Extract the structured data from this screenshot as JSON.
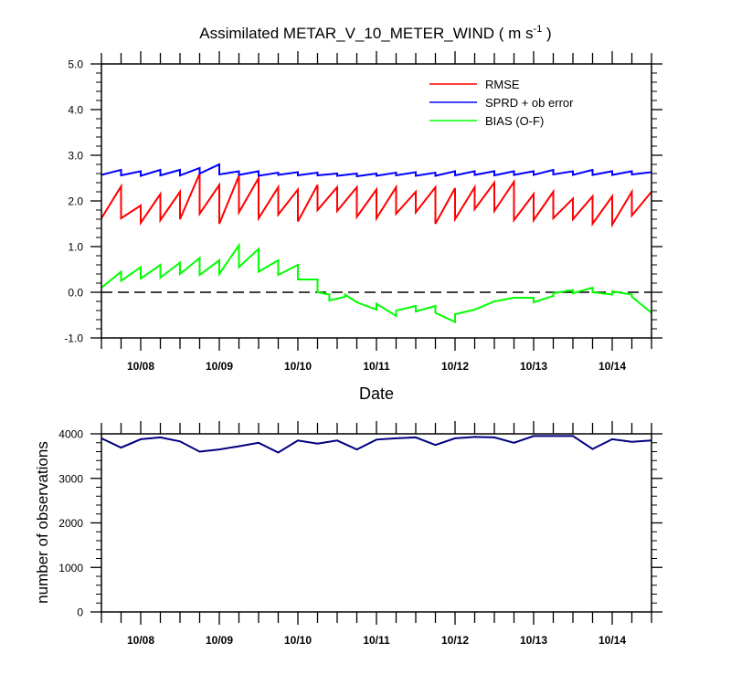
{
  "chart_data": [
    {
      "type": "line",
      "title_main": "Assimilated METAR_V_10_METER_WIND ( m s",
      "title_sup": "-1",
      "title_close": " )",
      "xlabel": "Date",
      "ylabel": "",
      "ylim": [
        -1.0,
        5.0
      ],
      "yticks": [
        "-1.0",
        "0.0",
        "1.0",
        "2.0",
        "3.0",
        "4.0",
        "5.0"
      ],
      "xlim": [
        7.5,
        14.5
      ],
      "xtick_labels": [
        "10/08",
        "10/09",
        "10/10",
        "10/11",
        "10/12",
        "10/13",
        "10/14"
      ],
      "xtick_values": [
        8,
        9,
        10,
        11,
        12,
        13,
        14
      ],
      "zero_line": 0,
      "legend_position": "top-right",
      "series": [
        {
          "name": "RMSE",
          "color": "#ff0000",
          "points": [
            [
              7.5,
              1.62
            ],
            [
              7.75,
              2.32
            ],
            [
              7.75,
              1.62
            ],
            [
              8.0,
              1.9
            ],
            [
              8.0,
              1.52
            ],
            [
              8.25,
              2.15
            ],
            [
              8.25,
              1.58
            ],
            [
              8.5,
              2.2
            ],
            [
              8.5,
              1.6
            ],
            [
              8.75,
              2.6
            ],
            [
              8.75,
              1.72
            ],
            [
              9.0,
              2.35
            ],
            [
              9.0,
              1.5
            ],
            [
              9.25,
              2.55
            ],
            [
              9.25,
              1.75
            ],
            [
              9.5,
              2.5
            ],
            [
              9.5,
              1.62
            ],
            [
              9.75,
              2.3
            ],
            [
              9.75,
              1.7
            ],
            [
              10.0,
              2.25
            ],
            [
              10.0,
              1.55
            ],
            [
              10.25,
              2.35
            ],
            [
              10.25,
              1.8
            ],
            [
              10.5,
              2.3
            ],
            [
              10.5,
              1.78
            ],
            [
              10.75,
              2.3
            ],
            [
              10.75,
              1.65
            ],
            [
              11.0,
              2.25
            ],
            [
              11.0,
              1.62
            ],
            [
              11.25,
              2.3
            ],
            [
              11.25,
              1.72
            ],
            [
              11.5,
              2.2
            ],
            [
              11.5,
              1.75
            ],
            [
              11.75,
              2.3
            ],
            [
              11.75,
              1.5
            ],
            [
              12.0,
              2.28
            ],
            [
              12.0,
              1.6
            ],
            [
              12.25,
              2.3
            ],
            [
              12.25,
              1.82
            ],
            [
              12.5,
              2.4
            ],
            [
              12.5,
              1.78
            ],
            [
              12.75,
              2.42
            ],
            [
              12.75,
              1.58
            ],
            [
              13.0,
              2.15
            ],
            [
              13.0,
              1.58
            ],
            [
              13.25,
              2.2
            ],
            [
              13.25,
              1.62
            ],
            [
              13.5,
              2.05
            ],
            [
              13.5,
              1.6
            ],
            [
              13.75,
              2.1
            ],
            [
              13.75,
              1.5
            ],
            [
              14.0,
              2.1
            ],
            [
              14.0,
              1.48
            ],
            [
              14.25,
              2.2
            ],
            [
              14.25,
              1.68
            ],
            [
              14.5,
              2.2
            ]
          ]
        },
        {
          "name": "SPRD + ob error",
          "color": "#0000ff",
          "points": [
            [
              7.5,
              2.57
            ],
            [
              7.75,
              2.68
            ],
            [
              7.75,
              2.56
            ],
            [
              8.0,
              2.65
            ],
            [
              8.0,
              2.55
            ],
            [
              8.25,
              2.68
            ],
            [
              8.25,
              2.56
            ],
            [
              8.5,
              2.68
            ],
            [
              8.5,
              2.56
            ],
            [
              8.75,
              2.72
            ],
            [
              8.75,
              2.6
            ],
            [
              9.0,
              2.8
            ],
            [
              9.0,
              2.58
            ],
            [
              9.25,
              2.65
            ],
            [
              9.25,
              2.57
            ],
            [
              9.5,
              2.65
            ],
            [
              9.5,
              2.55
            ],
            [
              9.75,
              2.62
            ],
            [
              9.75,
              2.57
            ],
            [
              10.0,
              2.63
            ],
            [
              10.0,
              2.56
            ],
            [
              10.25,
              2.62
            ],
            [
              10.25,
              2.56
            ],
            [
              10.5,
              2.6
            ],
            [
              10.5,
              2.55
            ],
            [
              10.75,
              2.6
            ],
            [
              10.75,
              2.54
            ],
            [
              11.0,
              2.6
            ],
            [
              11.0,
              2.55
            ],
            [
              11.25,
              2.62
            ],
            [
              11.25,
              2.56
            ],
            [
              11.5,
              2.63
            ],
            [
              11.5,
              2.55
            ],
            [
              11.75,
              2.62
            ],
            [
              11.75,
              2.55
            ],
            [
              12.0,
              2.65
            ],
            [
              12.0,
              2.56
            ],
            [
              12.25,
              2.65
            ],
            [
              12.25,
              2.57
            ],
            [
              12.5,
              2.65
            ],
            [
              12.5,
              2.56
            ],
            [
              12.75,
              2.65
            ],
            [
              12.75,
              2.57
            ],
            [
              13.0,
              2.65
            ],
            [
              13.0,
              2.57
            ],
            [
              13.25,
              2.68
            ],
            [
              13.25,
              2.58
            ],
            [
              13.5,
              2.65
            ],
            [
              13.5,
              2.57
            ],
            [
              13.75,
              2.68
            ],
            [
              13.75,
              2.57
            ],
            [
              14.0,
              2.65
            ],
            [
              14.0,
              2.57
            ],
            [
              14.25,
              2.65
            ],
            [
              14.25,
              2.58
            ],
            [
              14.5,
              2.63
            ]
          ]
        },
        {
          "name": "BIAS (O-F)",
          "color": "#00ff00",
          "points": [
            [
              7.5,
              0.1
            ],
            [
              7.75,
              0.45
            ],
            [
              7.75,
              0.25
            ],
            [
              8.0,
              0.55
            ],
            [
              8.0,
              0.3
            ],
            [
              8.25,
              0.6
            ],
            [
              8.25,
              0.32
            ],
            [
              8.5,
              0.65
            ],
            [
              8.5,
              0.4
            ],
            [
              8.75,
              0.75
            ],
            [
              8.75,
              0.38
            ],
            [
              9.0,
              0.7
            ],
            [
              9.0,
              0.4
            ],
            [
              9.25,
              1.03
            ],
            [
              9.25,
              0.55
            ],
            [
              9.5,
              0.95
            ],
            [
              9.5,
              0.45
            ],
            [
              9.75,
              0.7
            ],
            [
              9.75,
              0.38
            ],
            [
              10.0,
              0.6
            ],
            [
              10.0,
              0.28
            ],
            [
              10.25,
              0.28
            ],
            [
              10.25,
              0.0
            ],
            [
              10.4,
              -0.05
            ],
            [
              10.4,
              -0.18
            ],
            [
              10.6,
              -0.1
            ],
            [
              10.6,
              -0.05
            ],
            [
              10.75,
              -0.22
            ],
            [
              11.0,
              -0.38
            ],
            [
              11.0,
              -0.25
            ],
            [
              11.25,
              -0.52
            ],
            [
              11.25,
              -0.4
            ],
            [
              11.5,
              -0.3
            ],
            [
              11.5,
              -0.42
            ],
            [
              11.75,
              -0.3
            ],
            [
              11.75,
              -0.45
            ],
            [
              12.0,
              -0.65
            ],
            [
              12.0,
              -0.48
            ],
            [
              12.25,
              -0.38
            ],
            [
              12.5,
              -0.2
            ],
            [
              12.75,
              -0.12
            ],
            [
              13.0,
              -0.12
            ],
            [
              13.0,
              -0.22
            ],
            [
              13.25,
              -0.08
            ],
            [
              13.25,
              -0.02
            ],
            [
              13.5,
              0.05
            ],
            [
              13.5,
              -0.02
            ],
            [
              13.75,
              0.1
            ],
            [
              13.75,
              0.0
            ],
            [
              14.0,
              -0.05
            ],
            [
              14.0,
              0.02
            ],
            [
              14.25,
              -0.05
            ],
            [
              14.25,
              -0.1
            ],
            [
              14.5,
              -0.45
            ]
          ]
        }
      ]
    },
    {
      "type": "line",
      "title": "",
      "xlabel": "",
      "ylabel": "number of observations",
      "ylim": [
        0,
        4000
      ],
      "yticks": [
        "0",
        "1000",
        "2000",
        "3000",
        "4000"
      ],
      "xlim": [
        7.5,
        14.5
      ],
      "xtick_labels": [
        "10/08",
        "10/09",
        "10/10",
        "10/11",
        "10/12",
        "10/13",
        "10/14"
      ],
      "xtick_values": [
        8,
        9,
        10,
        11,
        12,
        13,
        14
      ],
      "series": [
        {
          "name": "number of observations",
          "color": "#000080",
          "points": [
            [
              7.5,
              3900
            ],
            [
              7.75,
              3690
            ],
            [
              8.0,
              3880
            ],
            [
              8.25,
              3920
            ],
            [
              8.5,
              3830
            ],
            [
              8.75,
              3600
            ],
            [
              9.0,
              3650
            ],
            [
              9.25,
              3720
            ],
            [
              9.5,
              3800
            ],
            [
              9.75,
              3580
            ],
            [
              10.0,
              3850
            ],
            [
              10.25,
              3780
            ],
            [
              10.5,
              3850
            ],
            [
              10.75,
              3650
            ],
            [
              11.0,
              3870
            ],
            [
              11.25,
              3900
            ],
            [
              11.5,
              3920
            ],
            [
              11.75,
              3750
            ],
            [
              12.0,
              3900
            ],
            [
              12.25,
              3930
            ],
            [
              12.5,
              3920
            ],
            [
              12.75,
              3800
            ],
            [
              13.0,
              3950
            ],
            [
              13.25,
              3950
            ],
            [
              13.5,
              3950
            ],
            [
              13.75,
              3660
            ],
            [
              14.0,
              3880
            ],
            [
              14.25,
              3820
            ],
            [
              14.5,
              3850
            ]
          ]
        }
      ]
    }
  ]
}
